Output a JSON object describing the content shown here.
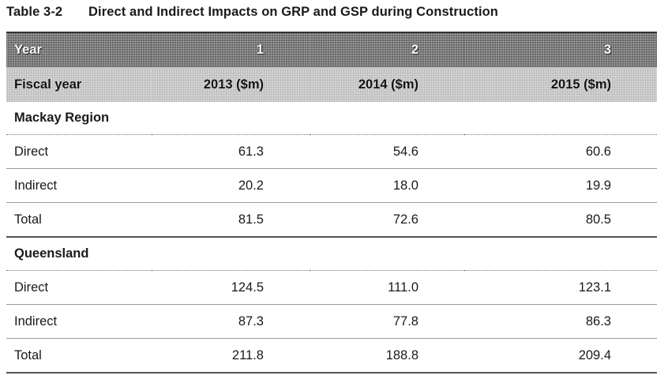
{
  "table": {
    "number": "Table 3-2",
    "title": "Direct and Indirect Impacts on GRP and GSP during Construction",
    "year_header": {
      "label": "Year",
      "values": [
        "1",
        "2",
        "3"
      ]
    },
    "fiscal_header": {
      "label": "Fiscal year",
      "values": [
        "2013 ($m)",
        "2014 ($m)",
        "2015 ($m)"
      ]
    },
    "sections": [
      {
        "name": "Mackay Region",
        "rows": [
          {
            "label": "Direct",
            "values": [
              "61.3",
              "54.6",
              "60.6"
            ]
          },
          {
            "label": "Indirect",
            "values": [
              "20.2",
              "18.0",
              "19.9"
            ]
          },
          {
            "label": "Total",
            "values": [
              "81.5",
              "72.6",
              "80.5"
            ]
          }
        ]
      },
      {
        "name": "Queensland",
        "rows": [
          {
            "label": "Direct",
            "values": [
              "124.5",
              "111.0",
              "123.1"
            ]
          },
          {
            "label": "Indirect",
            "values": [
              "87.3",
              "77.8",
              "86.3"
            ]
          },
          {
            "label": "Total",
            "values": [
              "211.8",
              "188.8",
              "209.4"
            ]
          }
        ]
      }
    ]
  }
}
